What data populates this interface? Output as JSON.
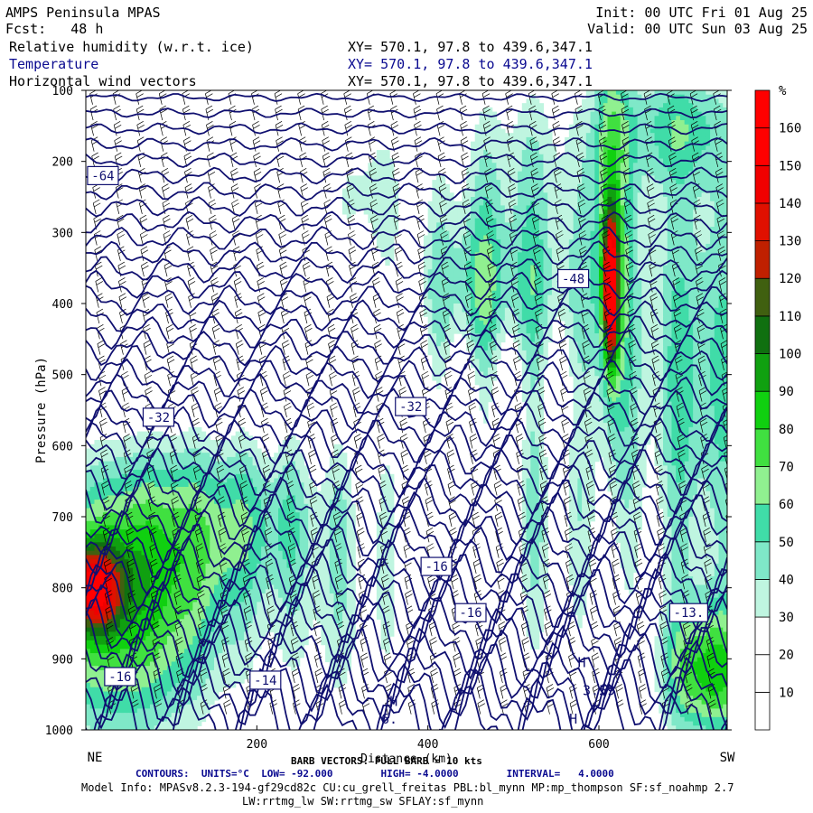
{
  "header": {
    "title": "AMPS Peninsula MPAS",
    "fcst_label": "Fcst:",
    "fcst_value": "48 h",
    "init": "Init: 00 UTC Fri 01 Aug 25",
    "valid": "Valid: 00 UTC Sun 03 Aug 25",
    "fields": [
      {
        "name": "Relative humidity (w.r.t. ice)",
        "xy": "XY= 570.1, 97.8 to 439.6,347.1"
      },
      {
        "name": "Temperature",
        "xy": "XY= 570.1, 97.8 to 439.6,347.1"
      },
      {
        "name": "Horizontal wind vectors",
        "xy": "XY= 570.1, 97.8 to 439.6,347.1"
      }
    ]
  },
  "chart_data": {
    "type": "heatmap",
    "ylabel": "Pressure (hPa)",
    "xlabel": "Distance (km)",
    "x_endpoints": {
      "left": "NE",
      "right": "SW"
    },
    "xlim": [
      0,
      750
    ],
    "ylim": [
      1000,
      100
    ],
    "y_ticks": [
      100,
      200,
      300,
      400,
      500,
      600,
      700,
      800,
      900,
      1000
    ],
    "x_ticks": [
      200,
      400,
      600
    ],
    "colorbar": {
      "unit": "%",
      "levels": [
        10,
        20,
        30,
        40,
        50,
        60,
        70,
        80,
        90,
        100,
        110,
        120,
        130,
        140,
        150,
        160
      ],
      "colors": [
        "#ffffff",
        "#ffffff",
        "#ffffff",
        "#bff5e0",
        "#7fe8c8",
        "#40dca8",
        "#90f090",
        "#40e040",
        "#10d010",
        "#10a010",
        "#107010",
        "#406010",
        "#c02000",
        "#e01000",
        "#f00000",
        "#ff0000",
        "#ff0000"
      ]
    },
    "temperature_contour_labels": [
      {
        "text": "-64",
        "distance_km": 20,
        "pressure_hpa": 220
      },
      {
        "text": "-48",
        "distance_km": 570,
        "pressure_hpa": 365
      },
      {
        "text": "-32",
        "distance_km": 380,
        "pressure_hpa": 545
      },
      {
        "text": "-32",
        "distance_km": 85,
        "pressure_hpa": 560
      },
      {
        "text": "-16",
        "distance_km": 410,
        "pressure_hpa": 770
      },
      {
        "text": "-16",
        "distance_km": 450,
        "pressure_hpa": 835
      },
      {
        "text": "-16",
        "distance_km": 40,
        "pressure_hpa": 925
      },
      {
        "text": "-14",
        "distance_km": 210,
        "pressure_hpa": 930
      },
      {
        "text": "-13.",
        "distance_km": 705,
        "pressure_hpa": 835
      }
    ],
    "annotations": [
      {
        "text": "H",
        "distance_km": 360,
        "pressure_hpa": 960
      },
      {
        "text": "H",
        "distance_km": 580,
        "pressure_hpa": 905
      },
      {
        "text": "H",
        "distance_km": 570,
        "pressure_hpa": 985
      },
      {
        "text": "6.",
        "distance_km": 355,
        "pressure_hpa": 985
      },
      {
        "text": "3.59",
        "distance_km": 600,
        "pressure_hpa": 945
      }
    ]
  },
  "footer": {
    "barb": "BARB VECTORS: FULL BARB = 10 kts",
    "contours": "CONTOURS:  UNITS=°C  LOW= -92.000        HIGH= -4.0000        INTERVAL=   4.0000",
    "model_info_1": "Model Info: MPASv8.2.3-194-gf29cd82c CU:cu_grell_freitas PBL:bl_mynn MP:mp_thompson SF:sf_noahmp 2.7",
    "model_info_2": "LW:rrtmg_lw SW:rrtmg_sw SFLAY:sf_mynn"
  },
  "colors": {
    "contour": "#101070",
    "barb": "#000000"
  }
}
